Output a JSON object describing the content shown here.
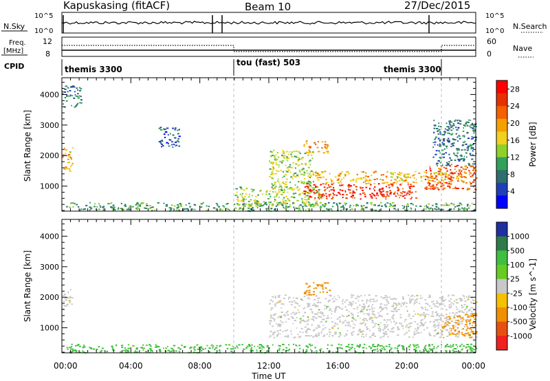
{
  "header": {
    "station": "Kapuskasing (fitACF)",
    "beam": "Beam 10",
    "date": "27/Dec/2015"
  },
  "panels": {
    "nsky": {
      "left_label": "N.Sky",
      "right_label": "N.Search",
      "left_ticks": [
        "10^5",
        "10^0"
      ],
      "right_ticks": [
        "10^5",
        "10^0"
      ]
    },
    "freq": {
      "left_label_line1": "Freq.",
      "left_label_line2": "[MHz]",
      "left_ticks": [
        "12",
        "8"
      ],
      "right_label": "Nave",
      "right_ticks": [
        "60",
        "0"
      ]
    },
    "cpid": {
      "label": "CPID",
      "segments": [
        "themis 3300",
        "tou (fast) 503",
        "themis 3300"
      ]
    }
  },
  "chart_data": [
    {
      "type": "heatmap",
      "title": "",
      "xlabel": "",
      "ylabel": "Slant Range [km]",
      "x_ticks": [
        "00:00",
        "04:00",
        "08:00",
        "12:00",
        "16:00",
        "20:00",
        "00:00"
      ],
      "xlim_hours": [
        0,
        24
      ],
      "y_ticks": [
        1000,
        2000,
        3000,
        4000
      ],
      "ylim_km": [
        180,
        4550
      ],
      "colorbar": {
        "label": "Power [dB]",
        "ticks": [
          "4",
          "8",
          "12",
          "16",
          "20",
          "24",
          "28"
        ],
        "range": [
          0,
          30
        ],
        "colors": [
          "#0000ff",
          "#1f3fb8",
          "#2e6e6e",
          "#34a05a",
          "#8fd12a",
          "#f0d020",
          "#f5a000",
          "#f56000",
          "#e83000",
          "#ff0000"
        ]
      },
      "regions": [
        {
          "t0": 0.0,
          "t1": 0.6,
          "r0": 1500,
          "r1": 2300,
          "level": 18
        },
        {
          "t0": 0.0,
          "t1": 1.1,
          "r0": 3600,
          "r1": 4300,
          "level": 8
        },
        {
          "t0": 0.2,
          "t1": 24.0,
          "r0": 200,
          "r1": 480,
          "level": 10
        },
        {
          "t0": 5.6,
          "t1": 6.8,
          "r0": 2300,
          "r1": 2950,
          "level": 6
        },
        {
          "t0": 10.0,
          "t1": 15.0,
          "r0": 350,
          "r1": 1000,
          "level": 14
        },
        {
          "t0": 12.0,
          "t1": 14.5,
          "r0": 900,
          "r1": 2200,
          "level": 14
        },
        {
          "t0": 14.0,
          "t1": 20.5,
          "r0": 600,
          "r1": 1100,
          "level": 26
        },
        {
          "t0": 14.5,
          "t1": 23.5,
          "r0": 1100,
          "r1": 1500,
          "level": 18
        },
        {
          "t0": 14.0,
          "t1": 15.5,
          "r0": 2100,
          "r1": 2500,
          "level": 20
        },
        {
          "t0": 21.0,
          "t1": 24.0,
          "r0": 900,
          "r1": 1700,
          "level": 24
        },
        {
          "t0": 21.5,
          "t1": 24.0,
          "r0": 1700,
          "r1": 3200,
          "level": 8
        }
      ]
    },
    {
      "type": "heatmap",
      "title": "",
      "xlabel": "Time UT",
      "ylabel": "Slant Range [km]",
      "x_ticks": [
        "00:00",
        "04:00",
        "08:00",
        "12:00",
        "16:00",
        "20:00",
        "00:00"
      ],
      "xlim_hours": [
        0,
        24
      ],
      "y_ticks": [
        1000,
        2000,
        3000,
        4000
      ],
      "ylim_km": [
        180,
        4550
      ],
      "colorbar": {
        "label": "Velocity [m s^-1]",
        "ticks": [
          "1000",
          "500",
          "100",
          "25",
          "-25",
          "-100",
          "-500",
          "-1000"
        ],
        "colors": [
          "#2030a0",
          "#2f7a4a",
          "#3fbf3f",
          "#66cc22",
          "#c8c8c8",
          "#f5c000",
          "#f09000",
          "#e85010",
          "#f02020"
        ]
      },
      "regions": [
        {
          "t0": 0.0,
          "t1": 0.6,
          "r0": 1600,
          "r1": 2300,
          "level": 0
        },
        {
          "t0": 0.2,
          "t1": 24.0,
          "r0": 200,
          "r1": 480,
          "level": 150
        },
        {
          "t0": 12.0,
          "t1": 24.0,
          "r0": 700,
          "r1": 2100,
          "level": 0
        },
        {
          "t0": 14.0,
          "t1": 15.5,
          "r0": 2100,
          "r1": 2500,
          "level": -300
        },
        {
          "t0": 22.0,
          "t1": 24.0,
          "r0": 700,
          "r1": 1500,
          "level": -400
        }
      ]
    }
  ]
}
